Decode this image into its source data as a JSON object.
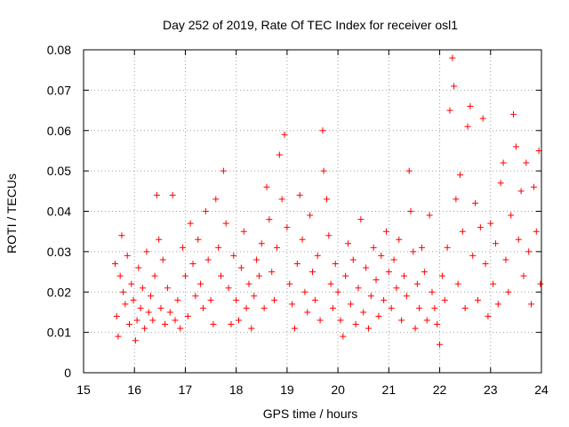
{
  "chart_data": {
    "type": "scatter",
    "title": "Day 252 of 2019, Rate Of TEC Index for receiver osl1",
    "xlabel": "GPS time / hours",
    "ylabel": "ROTI / TECUs",
    "xlim": [
      15,
      24
    ],
    "ylim": [
      0,
      0.08
    ],
    "x_ticks": [
      15,
      16,
      17,
      18,
      19,
      20,
      21,
      22,
      23,
      24
    ],
    "x_tick_labels": [
      "15",
      "16",
      "17",
      "18",
      "19",
      "20",
      "21",
      "22",
      "23",
      "24"
    ],
    "y_ticks": [
      0,
      0.01,
      0.02,
      0.03,
      0.04,
      0.05,
      0.06,
      0.07,
      0.08
    ],
    "y_tick_labels": [
      "0",
      "0.01",
      "0.02",
      "0.03",
      "0.04",
      "0.05",
      "0.06",
      "0.07",
      "0.08"
    ],
    "grid": true,
    "marker": "+",
    "color": "#ff0000",
    "series": [
      {
        "name": "osl1",
        "points": [
          [
            15.62,
            0.027
          ],
          [
            15.65,
            0.014
          ],
          [
            15.68,
            0.009
          ],
          [
            15.72,
            0.024
          ],
          [
            15.75,
            0.034
          ],
          [
            15.78,
            0.02
          ],
          [
            15.82,
            0.017
          ],
          [
            15.86,
            0.029
          ],
          [
            15.9,
            0.012
          ],
          [
            15.94,
            0.022
          ],
          [
            15.98,
            0.018
          ],
          [
            16.02,
            0.008
          ],
          [
            16.05,
            0.013
          ],
          [
            16.08,
            0.026
          ],
          [
            16.12,
            0.016
          ],
          [
            16.16,
            0.021
          ],
          [
            16.2,
            0.011
          ],
          [
            16.24,
            0.03
          ],
          [
            16.28,
            0.015
          ],
          [
            16.32,
            0.019
          ],
          [
            16.36,
            0.013
          ],
          [
            16.4,
            0.024
          ],
          [
            16.44,
            0.044
          ],
          [
            16.48,
            0.033
          ],
          [
            16.52,
            0.016
          ],
          [
            16.56,
            0.028
          ],
          [
            16.6,
            0.012
          ],
          [
            16.65,
            0.021
          ],
          [
            16.7,
            0.015
          ],
          [
            16.75,
            0.044
          ],
          [
            16.8,
            0.013
          ],
          [
            16.85,
            0.018
          ],
          [
            16.9,
            0.011
          ],
          [
            16.95,
            0.031
          ],
          [
            17.0,
            0.024
          ],
          [
            17.05,
            0.014
          ],
          [
            17.1,
            0.037
          ],
          [
            17.15,
            0.027
          ],
          [
            17.2,
            0.019
          ],
          [
            17.25,
            0.033
          ],
          [
            17.3,
            0.022
          ],
          [
            17.35,
            0.016
          ],
          [
            17.4,
            0.04
          ],
          [
            17.45,
            0.028
          ],
          [
            17.5,
            0.018
          ],
          [
            17.55,
            0.012
          ],
          [
            17.6,
            0.043
          ],
          [
            17.65,
            0.031
          ],
          [
            17.7,
            0.024
          ],
          [
            17.75,
            0.05
          ],
          [
            17.8,
            0.037
          ],
          [
            17.85,
            0.021
          ],
          [
            17.9,
            0.012
          ],
          [
            17.95,
            0.029
          ],
          [
            18.0,
            0.018
          ],
          [
            18.05,
            0.013
          ],
          [
            18.1,
            0.026
          ],
          [
            18.15,
            0.035
          ],
          [
            18.2,
            0.016
          ],
          [
            18.25,
            0.022
          ],
          [
            18.3,
            0.011
          ],
          [
            18.35,
            0.019
          ],
          [
            18.4,
            0.028
          ],
          [
            18.45,
            0.024
          ],
          [
            18.5,
            0.032
          ],
          [
            18.55,
            0.016
          ],
          [
            18.6,
            0.046
          ],
          [
            18.65,
            0.038
          ],
          [
            18.7,
            0.025
          ],
          [
            18.75,
            0.018
          ],
          [
            18.8,
            0.031
          ],
          [
            18.85,
            0.054
          ],
          [
            18.9,
            0.043
          ],
          [
            18.95,
            0.059
          ],
          [
            19.0,
            0.036
          ],
          [
            19.05,
            0.022
          ],
          [
            19.1,
            0.017
          ],
          [
            19.15,
            0.011
          ],
          [
            19.2,
            0.027
          ],
          [
            19.25,
            0.044
          ],
          [
            19.3,
            0.033
          ],
          [
            19.35,
            0.02
          ],
          [
            19.4,
            0.015
          ],
          [
            19.45,
            0.039
          ],
          [
            19.5,
            0.025
          ],
          [
            19.55,
            0.018
          ],
          [
            19.6,
            0.029
          ],
          [
            19.65,
            0.013
          ],
          [
            19.7,
            0.06
          ],
          [
            19.72,
            0.05
          ],
          [
            19.78,
            0.043
          ],
          [
            19.82,
            0.034
          ],
          [
            19.86,
            0.022
          ],
          [
            19.9,
            0.016
          ],
          [
            19.95,
            0.027
          ],
          [
            20.0,
            0.02
          ],
          [
            20.05,
            0.013
          ],
          [
            20.1,
            0.009
          ],
          [
            20.15,
            0.024
          ],
          [
            20.2,
            0.032
          ],
          [
            20.25,
            0.017
          ],
          [
            20.3,
            0.028
          ],
          [
            20.35,
            0.012
          ],
          [
            20.4,
            0.021
          ],
          [
            20.45,
            0.038
          ],
          [
            20.5,
            0.015
          ],
          [
            20.55,
            0.026
          ],
          [
            20.6,
            0.011
          ],
          [
            20.65,
            0.019
          ],
          [
            20.7,
            0.031
          ],
          [
            20.75,
            0.023
          ],
          [
            20.8,
            0.014
          ],
          [
            20.85,
            0.029
          ],
          [
            20.9,
            0.018
          ],
          [
            20.95,
            0.035
          ],
          [
            21.0,
            0.025
          ],
          [
            21.05,
            0.016
          ],
          [
            21.1,
            0.028
          ],
          [
            21.15,
            0.021
          ],
          [
            21.2,
            0.033
          ],
          [
            21.25,
            0.013
          ],
          [
            21.3,
            0.024
          ],
          [
            21.35,
            0.019
          ],
          [
            21.4,
            0.05
          ],
          [
            21.43,
            0.04
          ],
          [
            21.48,
            0.03
          ],
          [
            21.52,
            0.011
          ],
          [
            21.56,
            0.022
          ],
          [
            21.6,
            0.016
          ],
          [
            21.65,
            0.031
          ],
          [
            21.7,
            0.025
          ],
          [
            21.75,
            0.013
          ],
          [
            21.8,
            0.039
          ],
          [
            21.85,
            0.02
          ],
          [
            21.9,
            0.016
          ],
          [
            21.95,
            0.012
          ],
          [
            22.0,
            0.007
          ],
          [
            22.05,
            0.024
          ],
          [
            22.1,
            0.018
          ],
          [
            22.15,
            0.031
          ],
          [
            22.2,
            0.065
          ],
          [
            22.25,
            0.078
          ],
          [
            22.28,
            0.071
          ],
          [
            22.32,
            0.043
          ],
          [
            22.36,
            0.022
          ],
          [
            22.4,
            0.049
          ],
          [
            22.45,
            0.035
          ],
          [
            22.5,
            0.016
          ],
          [
            22.55,
            0.061
          ],
          [
            22.6,
            0.066
          ],
          [
            22.65,
            0.029
          ],
          [
            22.7,
            0.042
          ],
          [
            22.75,
            0.018
          ],
          [
            22.8,
            0.036
          ],
          [
            22.85,
            0.063
          ],
          [
            22.9,
            0.027
          ],
          [
            22.95,
            0.014
          ],
          [
            23.0,
            0.037
          ],
          [
            23.05,
            0.022
          ],
          [
            23.1,
            0.032
          ],
          [
            23.15,
            0.017
          ],
          [
            23.2,
            0.047
          ],
          [
            23.25,
            0.052
          ],
          [
            23.3,
            0.028
          ],
          [
            23.35,
            0.02
          ],
          [
            23.4,
            0.039
          ],
          [
            23.45,
            0.064
          ],
          [
            23.5,
            0.056
          ],
          [
            23.55,
            0.033
          ],
          [
            23.6,
            0.045
          ],
          [
            23.65,
            0.024
          ],
          [
            23.7,
            0.052
          ],
          [
            23.75,
            0.03
          ],
          [
            23.8,
            0.017
          ],
          [
            23.85,
            0.046
          ],
          [
            23.9,
            0.035
          ],
          [
            23.95,
            0.055
          ],
          [
            23.98,
            0.022
          ]
        ]
      }
    ]
  }
}
